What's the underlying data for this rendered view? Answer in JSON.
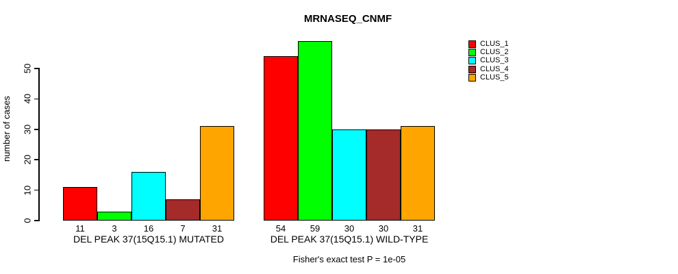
{
  "chart_data": {
    "type": "bar",
    "title": "MRNASEQ_CNMF",
    "ylabel": "number of cases",
    "ylim": [
      0,
      59
    ],
    "yticks": [
      0,
      10,
      20,
      30,
      40,
      50
    ],
    "grid": false,
    "legend_position": "right",
    "bar_value_labels_shown": true,
    "series": [
      {
        "name": "CLUS_1",
        "color": "#FF0000"
      },
      {
        "name": "CLUS_2",
        "color": "#00FF00"
      },
      {
        "name": "CLUS_3",
        "color": "#00FFFF"
      },
      {
        "name": "CLUS_4",
        "color": "#A52A2A"
      },
      {
        "name": "CLUS_5",
        "color": "#FFA500"
      }
    ],
    "groups": [
      {
        "label": "DEL PEAK 37(15Q15.1) MUTATED",
        "values": [
          11,
          3,
          16,
          7,
          31
        ]
      },
      {
        "label": "DEL PEAK 37(15Q15.1) WILD-TYPE",
        "values": [
          54,
          59,
          30,
          30,
          31
        ]
      }
    ],
    "caption": "Fisher's exact test P = 1e-05"
  }
}
